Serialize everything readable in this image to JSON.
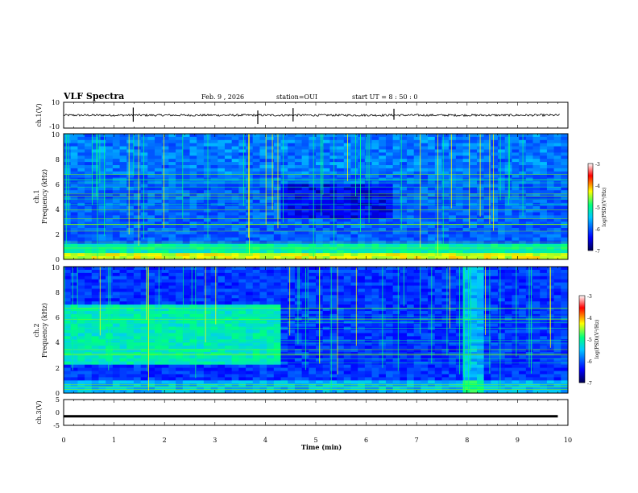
{
  "header": {
    "title": "VLF Spectra",
    "date": "Feb. 9 , 2026",
    "station": "station=OUI",
    "start": "start UT =  8 : 50 : 0"
  },
  "chart_data": [
    {
      "type": "line",
      "panel": "ch1-waveform",
      "ylabel": "ch.1(V)",
      "ylim": [
        -10,
        10
      ],
      "yticks": [
        "10",
        "-10"
      ],
      "baseline": 0,
      "spikes_min": [
        1.38,
        3.85,
        4.55,
        6.55
      ]
    },
    {
      "type": "heatmap",
      "panel": "ch1-spectrogram",
      "title": "ch.1",
      "ylabel": "Frequency (kHz)",
      "ylim": [
        0,
        10
      ],
      "yticks": [
        "0",
        "2",
        "4",
        "6",
        "8",
        "10"
      ],
      "colorbar": {
        "label": "log(PSD)(V²/Hz)",
        "range": [
          -7,
          -3
        ],
        "ticks": [
          "-3",
          "-4",
          "-5",
          "-6",
          "-7"
        ]
      }
    },
    {
      "type": "heatmap",
      "panel": "ch2-spectrogram",
      "title": "ch.2",
      "ylabel": "Frequency (kHz)",
      "ylim": [
        0,
        10
      ],
      "yticks": [
        "0",
        "2",
        "4",
        "6",
        "8",
        "10"
      ],
      "colorbar": {
        "label": "log(PSD)(V²/Hz)",
        "range": [
          -7,
          -3
        ],
        "ticks": [
          "-3",
          "-4",
          "-5",
          "-6",
          "-7"
        ]
      }
    },
    {
      "type": "line",
      "panel": "ch3-waveform",
      "ylabel": "ch.3(V)",
      "ylim": [
        -5,
        5
      ],
      "yticks": [
        "5",
        "0",
        "-5"
      ],
      "level": -1.5,
      "x_end_min": 9.8
    }
  ],
  "xaxis": {
    "label": "Time (min)",
    "range": [
      0,
      10
    ],
    "ticks": [
      "0",
      "1",
      "2",
      "3",
      "4",
      "5",
      "6",
      "7",
      "8",
      "9",
      "10"
    ]
  },
  "colors": {
    "colormap": [
      "#000050",
      "#0000ff",
      "#00c8ff",
      "#00ff80",
      "#ffff00",
      "#ff0000",
      "#ffffff"
    ]
  }
}
